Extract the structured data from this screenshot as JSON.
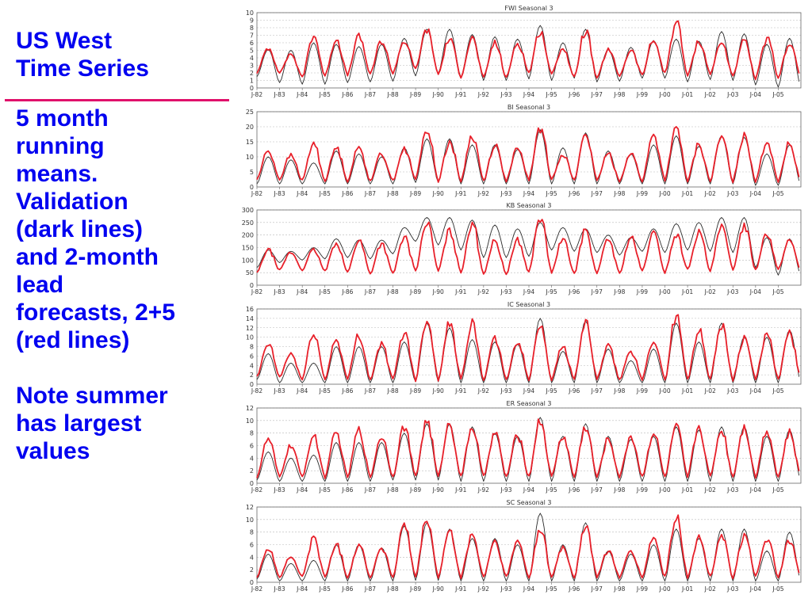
{
  "side_text": {
    "title_lines": [
      "US West",
      "Time Series"
    ],
    "body_lines": [
      "5 month",
      "running",
      "means.",
      "Validation",
      "(dark lines)",
      "and 2-month",
      "lead",
      "forecasts, 2+5",
      "(red lines)",
      "",
      "Note summer",
      "has largest",
      "values"
    ]
  },
  "colors": {
    "text": "#0000f0",
    "rule": "#e0106a",
    "observed_line": "#2b2b2b",
    "forecast_line": "#e8202a",
    "grid": "#b8b8b8"
  },
  "x_axis_labels": [
    "J-82",
    "J-83",
    "J-84",
    "J-85",
    "J-86",
    "J-87",
    "J-88",
    "J-89",
    "J-90",
    "J-91",
    "J-92",
    "J-93",
    "J-94",
    "J-95",
    "J-96",
    "J-97",
    "J-98",
    "J-99",
    "J-00",
    "J-01",
    "J-02",
    "J-03",
    "J-04",
    "J-05"
  ],
  "chart_data": [
    {
      "type": "line",
      "title": "FWI Seasonal 3",
      "ylim": [
        0,
        10
      ],
      "yticks": [
        0,
        1,
        2,
        3,
        4,
        5,
        6,
        7,
        8,
        9,
        10
      ],
      "grid": true,
      "series": [
        {
          "key": "observed",
          "peaks": [
            5.1,
            5.0,
            6.0,
            5.8,
            5.5,
            5.8,
            6.6,
            7.8,
            7.8,
            7.1,
            6.8,
            6.5,
            8.3,
            6.0,
            7.8,
            5.1,
            5.4,
            6.3,
            6.5,
            6.2,
            7.5,
            7.2,
            5.8,
            6.6
          ],
          "troughs": [
            1.5,
            0.7,
            0.5,
            0.5,
            0.7,
            0.8,
            0.9,
            1.6,
            1.9,
            1.4,
            1.0,
            1.0,
            1.2,
            1.0,
            1.3,
            0.8,
            0.9,
            1.3,
            1.3,
            0.8,
            1.1,
            1.0,
            0.4,
            0.1
          ]
        },
        {
          "key": "forecast",
          "peaks": [
            5.3,
            4.5,
            7.0,
            6.5,
            6.8,
            6.2,
            6.2,
            7.7,
            6.5,
            6.6,
            6.0,
            6.0,
            7.5,
            5.3,
            7.6,
            5.0,
            5.0,
            6.3,
            8.8,
            6.2,
            6.0,
            6.2,
            6.5,
            6.0
          ],
          "troughs": [
            2.0,
            2.0,
            1.4,
            1.5,
            1.7,
            1.8,
            2.0,
            2.5,
            1.8,
            1.5,
            1.3,
            1.3,
            2.0,
            1.8,
            1.3,
            1.2,
            1.6,
            1.7,
            1.9,
            1.6,
            1.9,
            1.6,
            1.2,
            1.4
          ]
        }
      ]
    },
    {
      "type": "line",
      "title": "BI Seasonal 3",
      "ylim": [
        0,
        25
      ],
      "yticks": [
        0,
        5,
        10,
        15,
        20,
        25
      ],
      "grid": true,
      "series": [
        {
          "key": "observed",
          "peaks": [
            10.0,
            9.0,
            8.0,
            12.0,
            11.0,
            10.0,
            13.0,
            16.0,
            16.0,
            14.0,
            14.0,
            12.5,
            19.0,
            13.0,
            18.0,
            12.0,
            11.0,
            14.0,
            17.0,
            13.5,
            17.0,
            16.5,
            11.0,
            14.0
          ],
          "troughs": [
            1.0,
            1.0,
            1.0,
            1.0,
            1.0,
            1.0,
            1.0,
            1.5,
            1.5,
            1.0,
            1.0,
            1.0,
            1.0,
            1.0,
            1.0,
            1.0,
            1.0,
            1.0,
            1.0,
            1.0,
            1.0,
            1.0,
            0.5,
            0.5
          ]
        },
        {
          "key": "forecast",
          "peaks": [
            12.0,
            10.5,
            14.5,
            13.0,
            13.0,
            11.0,
            12.5,
            19.0,
            15.0,
            17.0,
            14.0,
            12.5,
            19.5,
            11.0,
            18.0,
            11.0,
            11.0,
            17.0,
            19.0,
            14.0,
            16.5,
            17.5,
            15.0,
            14.5
          ],
          "troughs": [
            2.5,
            2.5,
            2.0,
            2.0,
            2.0,
            2.0,
            2.0,
            2.5,
            2.0,
            2.0,
            2.0,
            2.0,
            2.5,
            2.5,
            2.0,
            2.0,
            2.0,
            2.0,
            2.5,
            2.0,
            2.0,
            2.0,
            2.0,
            2.0
          ]
        }
      ]
    },
    {
      "type": "line",
      "title": "KB Seasonal 3",
      "ylim": [
        0,
        300
      ],
      "yticks": [
        0,
        50,
        100,
        150,
        200,
        250,
        300
      ],
      "grid": true,
      "series": [
        {
          "key": "observed",
          "peaks": [
            140,
            135,
            150,
            185,
            180,
            180,
            230,
            270,
            270,
            260,
            240,
            225,
            250,
            230,
            225,
            200,
            190,
            225,
            245,
            250,
            270,
            270,
            190,
            185
          ],
          "troughs": [
            70,
            90,
            100,
            105,
            110,
            105,
            125,
            175,
            160,
            140,
            110,
            110,
            115,
            140,
            135,
            130,
            120,
            135,
            130,
            140,
            135,
            130,
            70,
            40
          ]
        },
        {
          "key": "forecast",
          "peaks": [
            140,
            130,
            140,
            170,
            180,
            165,
            190,
            250,
            215,
            250,
            175,
            180,
            270,
            180,
            220,
            185,
            190,
            205,
            200,
            210,
            230,
            240,
            210,
            180
          ],
          "troughs": [
            50,
            60,
            60,
            55,
            50,
            45,
            45,
            60,
            55,
            50,
            45,
            45,
            50,
            50,
            45,
            45,
            45,
            55,
            50,
            60,
            55,
            60,
            60,
            60
          ]
        }
      ]
    },
    {
      "type": "line",
      "title": "IC Seasonal 3",
      "ylim": [
        0,
        16
      ],
      "yticks": [
        0,
        2,
        4,
        6,
        8,
        10,
        12,
        14,
        16
      ],
      "grid": true,
      "series": [
        {
          "key": "observed",
          "peaks": [
            6.5,
            4.5,
            4.5,
            8.0,
            8.0,
            8.0,
            9.0,
            13.0,
            12.0,
            9.5,
            9.0,
            8.5,
            14.0,
            7.0,
            13.5,
            7.5,
            5.0,
            7.5,
            13.0,
            9.0,
            13.0,
            10.0,
            10.0,
            11.5
          ],
          "troughs": [
            1.0,
            0.3,
            0.3,
            0.3,
            0.3,
            0.3,
            0.3,
            0.5,
            0.5,
            0.3,
            0.3,
            0.3,
            0.3,
            0.3,
            0.3,
            0.3,
            0.3,
            0.3,
            0.3,
            0.3,
            0.3,
            0.3,
            0.3,
            0.3
          ]
        },
        {
          "key": "forecast",
          "peaks": [
            8.5,
            6.5,
            11.0,
            9.5,
            10.5,
            8.5,
            11.0,
            14.0,
            13.0,
            13.0,
            9.5,
            9.0,
            13.0,
            8.0,
            13.0,
            8.0,
            7.0,
            9.5,
            14.5,
            11.5,
            12.5,
            10.0,
            10.5,
            11.0
          ],
          "troughs": [
            1.5,
            1.5,
            1.0,
            1.0,
            1.0,
            1.0,
            1.0,
            1.0,
            1.0,
            1.0,
            1.0,
            1.0,
            1.0,
            1.0,
            1.0,
            1.0,
            1.0,
            1.0,
            1.0,
            1.0,
            1.0,
            1.0,
            1.0,
            1.0
          ]
        }
      ]
    },
    {
      "type": "line",
      "title": "ER Seasonal 3",
      "ylim": [
        0,
        12
      ],
      "yticks": [
        0,
        2,
        4,
        6,
        8,
        10,
        12
      ],
      "grid": true,
      "series": [
        {
          "key": "observed",
          "peaks": [
            5.0,
            4.0,
            4.5,
            6.5,
            6.5,
            6.5,
            8.0,
            9.5,
            9.5,
            9.0,
            8.0,
            7.5,
            10.5,
            7.5,
            9.5,
            7.5,
            7.0,
            7.5,
            9.0,
            8.5,
            9.0,
            9.0,
            7.5,
            8.5
          ],
          "troughs": [
            0.5,
            0.3,
            0.3,
            0.3,
            0.3,
            0.3,
            0.5,
            0.5,
            0.5,
            0.3,
            0.3,
            0.3,
            0.3,
            0.3,
            0.3,
            0.3,
            0.3,
            0.3,
            0.3,
            0.3,
            0.3,
            0.3,
            0.3,
            0.3
          ]
        },
        {
          "key": "forecast",
          "peaks": [
            7.0,
            6.0,
            7.5,
            8.0,
            8.5,
            7.5,
            9.0,
            10.0,
            9.5,
            9.0,
            8.0,
            7.5,
            10.0,
            7.5,
            9.0,
            7.0,
            7.5,
            8.0,
            9.0,
            9.0,
            8.5,
            9.0,
            8.5,
            8.0
          ],
          "troughs": [
            1.0,
            1.0,
            1.0,
            1.0,
            1.0,
            1.0,
            1.0,
            1.0,
            1.0,
            1.0,
            1.0,
            1.0,
            1.0,
            1.0,
            1.0,
            1.0,
            1.0,
            1.0,
            1.0,
            1.0,
            1.0,
            1.0,
            1.0,
            1.0
          ]
        }
      ]
    },
    {
      "type": "line",
      "title": "SC Seasonal 3",
      "ylim": [
        0,
        12
      ],
      "yticks": [
        0,
        2,
        4,
        6,
        8,
        10,
        12
      ],
      "grid": true,
      "series": [
        {
          "key": "observed",
          "peaks": [
            4.5,
            3.0,
            3.5,
            6.0,
            6.0,
            5.5,
            9.0,
            9.5,
            8.5,
            7.0,
            7.0,
            6.0,
            11.0,
            6.0,
            9.5,
            5.0,
            4.5,
            6.0,
            8.5,
            7.0,
            8.5,
            8.5,
            5.0,
            8.0
          ],
          "troughs": [
            0.5,
            0.2,
            0.2,
            0.2,
            0.2,
            0.2,
            0.2,
            0.3,
            0.3,
            0.2,
            0.2,
            0.2,
            0.2,
            0.2,
            0.2,
            0.2,
            0.2,
            0.2,
            0.2,
            0.2,
            0.2,
            0.2,
            0.2,
            0.2
          ]
        },
        {
          "key": "forecast",
          "peaks": [
            5.5,
            4.0,
            7.0,
            6.0,
            6.0,
            5.5,
            9.0,
            10.0,
            8.0,
            7.5,
            6.5,
            6.5,
            8.5,
            5.5,
            9.0,
            5.0,
            5.0,
            7.0,
            10.5,
            7.0,
            7.5,
            7.5,
            7.0,
            6.5
          ],
          "troughs": [
            0.8,
            0.8,
            0.8,
            0.8,
            0.8,
            0.8,
            0.8,
            0.8,
            0.8,
            0.8,
            0.8,
            0.8,
            0.8,
            0.8,
            0.8,
            0.8,
            0.8,
            0.8,
            0.8,
            0.8,
            0.8,
            0.8,
            0.8,
            0.8
          ]
        }
      ]
    }
  ]
}
